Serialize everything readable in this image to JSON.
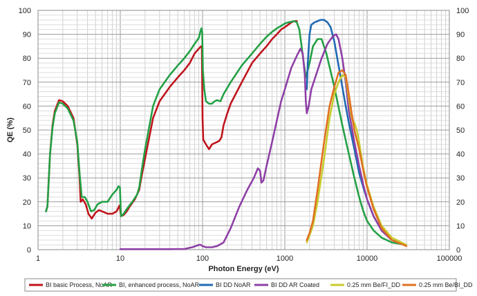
{
  "chart_data": {
    "type": "line",
    "title": "",
    "xlabel": "Photon Energy (eV)",
    "ylabel": "QE (%)",
    "x_scale": "log",
    "xlim": [
      1,
      100000
    ],
    "ylim": [
      0,
      100
    ],
    "x_ticks": [
      "1",
      "10",
      "100",
      "1000",
      "10000",
      "100000"
    ],
    "y_ticks": [
      "0",
      "10",
      "20",
      "30",
      "40",
      "50",
      "60",
      "70",
      "80",
      "90",
      "100"
    ],
    "y_ticks_right": [
      "0",
      "10",
      "20",
      "30",
      "40",
      "50",
      "60",
      "70",
      "80",
      "90",
      "100"
    ],
    "grid": true,
    "legend_position": "bottom",
    "series": [
      {
        "name": "BI basic Process, NoAR",
        "color": "#c0141c",
        "points": [
          [
            1.25,
            16
          ],
          [
            1.3,
            18
          ],
          [
            1.4,
            40
          ],
          [
            1.5,
            52
          ],
          [
            1.6,
            58
          ],
          [
            1.8,
            62.5
          ],
          [
            2.0,
            62
          ],
          [
            2.3,
            60
          ],
          [
            2.7,
            55
          ],
          [
            3.0,
            44
          ],
          [
            3.2,
            30
          ],
          [
            3.3,
            20
          ],
          [
            3.5,
            21
          ],
          [
            3.8,
            19
          ],
          [
            4.1,
            15
          ],
          [
            4.5,
            13
          ],
          [
            5.0,
            15.5
          ],
          [
            5.5,
            16.5
          ],
          [
            6.0,
            16
          ],
          [
            7.0,
            15
          ],
          [
            8.0,
            15
          ],
          [
            9.0,
            16
          ],
          [
            9.8,
            18.5
          ],
          [
            10.2,
            14
          ],
          [
            11,
            14.5
          ],
          [
            12,
            16
          ],
          [
            13,
            18
          ],
          [
            15,
            21
          ],
          [
            17,
            25
          ],
          [
            18,
            30
          ],
          [
            20,
            38
          ],
          [
            25,
            55
          ],
          [
            30,
            62
          ],
          [
            40,
            68
          ],
          [
            50,
            72
          ],
          [
            60,
            75
          ],
          [
            70,
            78
          ],
          [
            80,
            82
          ],
          [
            90,
            84
          ],
          [
            96,
            85
          ],
          [
            98,
            85
          ],
          [
            100,
            55
          ],
          [
            102,
            46
          ],
          [
            110,
            44
          ],
          [
            120,
            42
          ],
          [
            130,
            44
          ],
          [
            140,
            44.5
          ],
          [
            150,
            45
          ],
          [
            160,
            45.5
          ],
          [
            170,
            47
          ],
          [
            180,
            52
          ],
          [
            200,
            57
          ],
          [
            220,
            61
          ],
          [
            300,
            70
          ],
          [
            400,
            78
          ],
          [
            500,
            82
          ],
          [
            600,
            85
          ],
          [
            700,
            88
          ],
          [
            800,
            90
          ],
          [
            900,
            92
          ],
          [
            1000,
            93
          ],
          [
            1100,
            94
          ],
          [
            1200,
            95
          ],
          [
            1300,
            95.5
          ],
          [
            1400,
            95.5
          ]
        ]
      },
      {
        "name": "BI, enhanced process, NoAR",
        "color": "#23a044",
        "points": [
          [
            1.25,
            16
          ],
          [
            1.3,
            18
          ],
          [
            1.4,
            40
          ],
          [
            1.5,
            51
          ],
          [
            1.6,
            57
          ],
          [
            1.8,
            61.5
          ],
          [
            2.0,
            61
          ],
          [
            2.3,
            59
          ],
          [
            2.7,
            54
          ],
          [
            3.0,
            45
          ],
          [
            3.2,
            32
          ],
          [
            3.4,
            22
          ],
          [
            3.7,
            22
          ],
          [
            4.0,
            20
          ],
          [
            4.4,
            16
          ],
          [
            4.8,
            16.5
          ],
          [
            5.3,
            19
          ],
          [
            6.0,
            20
          ],
          [
            7.0,
            20
          ],
          [
            8.0,
            23
          ],
          [
            9.0,
            25
          ],
          [
            9.5,
            26.5
          ],
          [
            9.9,
            26
          ],
          [
            10.2,
            14
          ],
          [
            11,
            15
          ],
          [
            12,
            17
          ],
          [
            14,
            20
          ],
          [
            16,
            23
          ],
          [
            17,
            26
          ],
          [
            18,
            32
          ],
          [
            20,
            42
          ],
          [
            25,
            60
          ],
          [
            30,
            67
          ],
          [
            40,
            73
          ],
          [
            50,
            77
          ],
          [
            60,
            80
          ],
          [
            70,
            83
          ],
          [
            80,
            86
          ],
          [
            90,
            88.5
          ],
          [
            94,
            91
          ],
          [
            97,
            92.5
          ],
          [
            99,
            91
          ],
          [
            101,
            75
          ],
          [
            105,
            67
          ],
          [
            110,
            62
          ],
          [
            120,
            61
          ],
          [
            130,
            61
          ],
          [
            140,
            62
          ],
          [
            150,
            62.5
          ],
          [
            165,
            62
          ],
          [
            180,
            65
          ],
          [
            220,
            70
          ],
          [
            300,
            77
          ],
          [
            400,
            82
          ],
          [
            500,
            86
          ],
          [
            600,
            89
          ],
          [
            700,
            91
          ],
          [
            800,
            92.5
          ],
          [
            900,
            93.5
          ],
          [
            1000,
            94.5
          ],
          [
            1100,
            95
          ],
          [
            1300,
            95.5
          ],
          [
            1400,
            95
          ],
          [
            1500,
            92
          ],
          [
            1600,
            85
          ],
          [
            1700,
            78
          ],
          [
            1800,
            72
          ],
          [
            2000,
            78
          ],
          [
            2200,
            85
          ],
          [
            2500,
            88
          ],
          [
            2800,
            88
          ],
          [
            3200,
            82
          ],
          [
            4000,
            68
          ],
          [
            5000,
            52
          ],
          [
            6000,
            40
          ],
          [
            7000,
            30
          ],
          [
            8000,
            22
          ],
          [
            9000,
            16
          ],
          [
            10000,
            12
          ],
          [
            12000,
            8
          ],
          [
            15000,
            5
          ],
          [
            20000,
            3
          ],
          [
            30000,
            2
          ]
        ]
      },
      {
        "name": "BI DD NoAR",
        "color": "#1f6ab3",
        "points": [
          [
            1850,
            67
          ],
          [
            1900,
            78
          ],
          [
            2000,
            90
          ],
          [
            2100,
            94
          ],
          [
            2300,
            95
          ],
          [
            2500,
            95.5
          ],
          [
            2700,
            96
          ],
          [
            3000,
            96
          ],
          [
            3300,
            95
          ],
          [
            3600,
            93
          ],
          [
            4000,
            87
          ],
          [
            4500,
            77
          ],
          [
            5000,
            68
          ],
          [
            5500,
            60
          ],
          [
            6000,
            53
          ],
          [
            7000,
            42
          ],
          [
            8000,
            32
          ],
          [
            9000,
            26
          ],
          [
            10000,
            21
          ],
          [
            12000,
            14
          ],
          [
            15000,
            8
          ],
          [
            20000,
            4
          ],
          [
            30000,
            2
          ]
        ]
      },
      {
        "name": "BI DD AR Coated",
        "color": "#8e3fa6",
        "points": [
          [
            10,
            0.2
          ],
          [
            20,
            0.2
          ],
          [
            40,
            0.2
          ],
          [
            60,
            0.3
          ],
          [
            75,
            1
          ],
          [
            90,
            2
          ],
          [
            95,
            2
          ],
          [
            100,
            1.5
          ],
          [
            110,
            1
          ],
          [
            130,
            1
          ],
          [
            150,
            1.5
          ],
          [
            180,
            3
          ],
          [
            220,
            9
          ],
          [
            280,
            18
          ],
          [
            350,
            25
          ],
          [
            420,
            30
          ],
          [
            470,
            34
          ],
          [
            500,
            33
          ],
          [
            520,
            28
          ],
          [
            550,
            29
          ],
          [
            600,
            35
          ],
          [
            700,
            45
          ],
          [
            800,
            54
          ],
          [
            900,
            62
          ],
          [
            1000,
            67
          ],
          [
            1200,
            76
          ],
          [
            1400,
            81
          ],
          [
            1550,
            84
          ],
          [
            1650,
            82
          ],
          [
            1750,
            73
          ],
          [
            1800,
            62
          ],
          [
            1850,
            57
          ],
          [
            1950,
            60
          ],
          [
            2100,
            67
          ],
          [
            2400,
            73
          ],
          [
            2800,
            80
          ],
          [
            3300,
            86
          ],
          [
            3800,
            89
          ],
          [
            4200,
            90
          ],
          [
            4500,
            88
          ],
          [
            5000,
            80
          ],
          [
            5500,
            70
          ],
          [
            6000,
            58
          ],
          [
            7000,
            45
          ],
          [
            8000,
            35
          ],
          [
            9000,
            27
          ],
          [
            10000,
            21
          ],
          [
            12000,
            14
          ],
          [
            15000,
            8
          ],
          [
            20000,
            4
          ],
          [
            30000,
            2
          ]
        ]
      },
      {
        "name": "0.25 mm Be/FI_DD",
        "color": "#c7cc2e",
        "points": [
          [
            1850,
            3
          ],
          [
            2000,
            6
          ],
          [
            2200,
            10
          ],
          [
            2500,
            20
          ],
          [
            3000,
            38
          ],
          [
            3500,
            55
          ],
          [
            4000,
            65
          ],
          [
            4500,
            70
          ],
          [
            5000,
            73
          ],
          [
            5500,
            72
          ],
          [
            6000,
            63
          ],
          [
            6500,
            55
          ],
          [
            7000,
            53
          ],
          [
            7500,
            50
          ],
          [
            8000,
            45
          ],
          [
            9000,
            34
          ],
          [
            10000,
            27
          ],
          [
            12000,
            18
          ],
          [
            15000,
            10
          ],
          [
            20000,
            5
          ],
          [
            30000,
            2
          ]
        ]
      },
      {
        "name": "0.25 mm Be/BI_DD",
        "color": "#e07022",
        "points": [
          [
            1850,
            4
          ],
          [
            2000,
            7
          ],
          [
            2200,
            12
          ],
          [
            2500,
            25
          ],
          [
            3000,
            45
          ],
          [
            3500,
            60
          ],
          [
            4000,
            68
          ],
          [
            4500,
            74
          ],
          [
            5000,
            75
          ],
          [
            5500,
            73
          ],
          [
            6000,
            65
          ],
          [
            6500,
            57
          ],
          [
            7000,
            50
          ],
          [
            8000,
            42
          ],
          [
            9000,
            33
          ],
          [
            10000,
            26
          ],
          [
            12000,
            17
          ],
          [
            15000,
            9
          ],
          [
            20000,
            4
          ],
          [
            30000,
            1.5
          ]
        ]
      }
    ]
  }
}
